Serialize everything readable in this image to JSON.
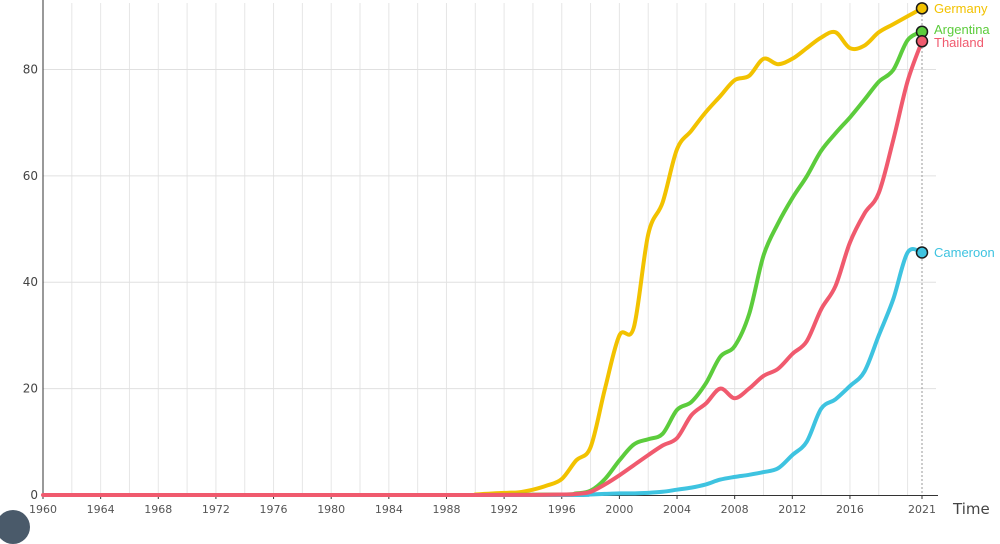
{
  "chart_data": {
    "type": "line",
    "title": "",
    "xlabel": "Time",
    "ylabel": "",
    "xlim": [
      1960,
      2021
    ],
    "ylim": [
      0,
      90
    ],
    "grid": true,
    "legend": "end-of-line labels",
    "x_ticks": [
      "1960",
      "1964",
      "1968",
      "1972",
      "1976",
      "1980",
      "1984",
      "1988",
      "1992",
      "1996",
      "2000",
      "2004",
      "2008",
      "2012",
      "2016",
      "2021"
    ],
    "y_ticks": [
      "0",
      "20",
      "40",
      "60",
      "80"
    ],
    "series": [
      {
        "name": "Germany",
        "color": "#f2c200",
        "points": [
          [
            1990,
            0.1
          ],
          [
            1992,
            0.4
          ],
          [
            1993,
            0.5
          ],
          [
            1994,
            1.0
          ],
          [
            1995,
            1.8
          ],
          [
            1996,
            3.0
          ],
          [
            1997,
            6.5
          ],
          [
            1998,
            9.0
          ],
          [
            1999,
            20.0
          ],
          [
            2000,
            30.0
          ],
          [
            2001,
            31.5
          ],
          [
            2002,
            49.0
          ],
          [
            2003,
            55.0
          ],
          [
            2004,
            65.0
          ],
          [
            2005,
            68.5
          ],
          [
            2006,
            72.0
          ],
          [
            2007,
            75.0
          ],
          [
            2008,
            78.0
          ],
          [
            2009,
            78.8
          ],
          [
            2010,
            82.0
          ],
          [
            2011,
            81.0
          ],
          [
            2012,
            82.0
          ],
          [
            2013,
            84.0
          ],
          [
            2014,
            86.0
          ],
          [
            2015,
            87.0
          ],
          [
            2016,
            84.0
          ],
          [
            2017,
            84.5
          ],
          [
            2018,
            87.0
          ],
          [
            2019,
            88.5
          ],
          [
            2020,
            90.0
          ],
          [
            2021,
            91.5
          ]
        ]
      },
      {
        "name": "Argentina",
        "color": "#5ccc3c",
        "points": [
          [
            1990,
            0
          ],
          [
            1996,
            0.1
          ],
          [
            1997,
            0.3
          ],
          [
            1998,
            0.8
          ],
          [
            1999,
            3.0
          ],
          [
            2000,
            6.5
          ],
          [
            2001,
            9.5
          ],
          [
            2002,
            10.5
          ],
          [
            2003,
            11.5
          ],
          [
            2004,
            16.0
          ],
          [
            2005,
            17.5
          ],
          [
            2006,
            21.0
          ],
          [
            2007,
            26.0
          ],
          [
            2008,
            28.0
          ],
          [
            2009,
            34.0
          ],
          [
            2010,
            45.0
          ],
          [
            2011,
            51.0
          ],
          [
            2012,
            55.8
          ],
          [
            2013,
            59.9
          ],
          [
            2014,
            64.7
          ],
          [
            2015,
            68.0
          ],
          [
            2016,
            71.0
          ],
          [
            2017,
            74.3
          ],
          [
            2018,
            77.7
          ],
          [
            2019,
            79.9
          ],
          [
            2020,
            85.5
          ],
          [
            2021,
            87.1
          ]
        ]
      },
      {
        "name": "Thailand",
        "color": "#f05a6e",
        "points": [
          [
            1960,
            0
          ],
          [
            1990,
            0
          ],
          [
            1996,
            0.1
          ],
          [
            1997,
            0.2
          ],
          [
            1998,
            0.6
          ],
          [
            1999,
            2.0
          ],
          [
            2000,
            3.7
          ],
          [
            2001,
            5.6
          ],
          [
            2002,
            7.5
          ],
          [
            2003,
            9.3
          ],
          [
            2004,
            10.7
          ],
          [
            2005,
            15.0
          ],
          [
            2006,
            17.2
          ],
          [
            2007,
            20.0
          ],
          [
            2008,
            18.2
          ],
          [
            2009,
            20.0
          ],
          [
            2010,
            22.4
          ],
          [
            2011,
            23.7
          ],
          [
            2012,
            26.5
          ],
          [
            2013,
            28.9
          ],
          [
            2014,
            34.9
          ],
          [
            2015,
            39.3
          ],
          [
            2016,
            47.5
          ],
          [
            2017,
            52.9
          ],
          [
            2018,
            56.8
          ],
          [
            2019,
            66.7
          ],
          [
            2020,
            77.8
          ],
          [
            2021,
            85.3
          ]
        ]
      },
      {
        "name": "Cameroon",
        "color": "#3ec3e0",
        "points": [
          [
            1990,
            0
          ],
          [
            1997,
            0
          ],
          [
            1998,
            0.1
          ],
          [
            1999,
            0.2
          ],
          [
            2000,
            0.3
          ],
          [
            2001,
            0.3
          ],
          [
            2002,
            0.4
          ],
          [
            2003,
            0.6
          ],
          [
            2004,
            1.0
          ],
          [
            2005,
            1.4
          ],
          [
            2006,
            2.0
          ],
          [
            2007,
            2.9
          ],
          [
            2008,
            3.4
          ],
          [
            2009,
            3.8
          ],
          [
            2010,
            4.3
          ],
          [
            2011,
            5.0
          ],
          [
            2012,
            7.5
          ],
          [
            2013,
            10.0
          ],
          [
            2014,
            16.2
          ],
          [
            2015,
            18.0
          ],
          [
            2016,
            20.5
          ],
          [
            2017,
            23.2
          ],
          [
            2018,
            30.0
          ],
          [
            2019,
            36.8
          ],
          [
            2020,
            45.6
          ],
          [
            2021,
            45.6
          ]
        ]
      }
    ]
  }
}
